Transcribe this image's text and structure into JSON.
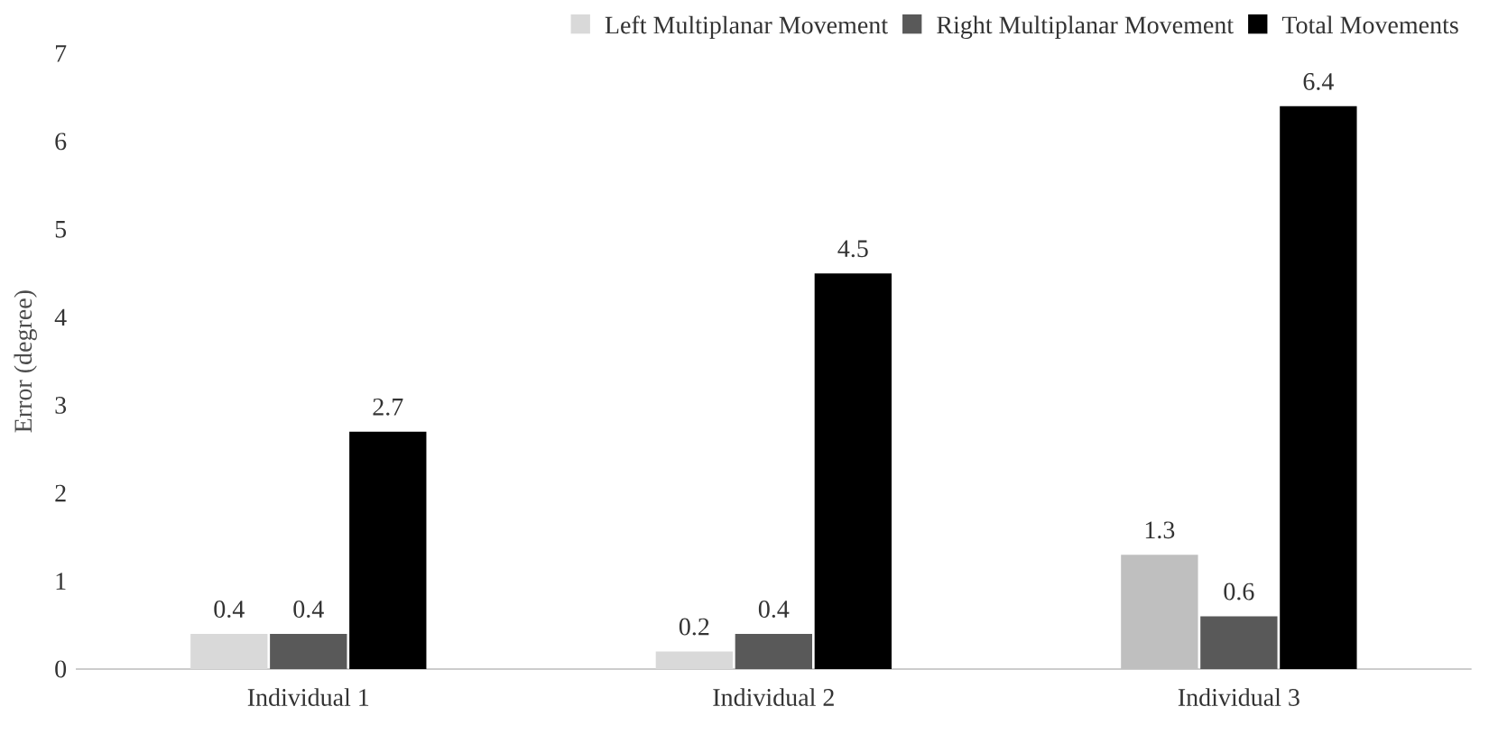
{
  "chart_data": {
    "type": "bar",
    "ylabel": "Error (degree)",
    "categories": [
      "Individual 1",
      "Individual 2",
      "Individual 3"
    ],
    "series": [
      {
        "name": "Left Multiplanar Movement",
        "colors": [
          "#d9d9d9",
          "#d9d9d9",
          "#bfbfbf"
        ],
        "values": [
          0.4,
          0.2,
          1.3
        ]
      },
      {
        "name": "Right Multiplanar Movement",
        "color": "#595959",
        "values": [
          0.4,
          0.4,
          0.6
        ]
      },
      {
        "name": "Total Movements",
        "color": "#000000",
        "values": [
          2.7,
          4.5,
          6.4
        ]
      }
    ],
    "ylim": [
      0,
      7
    ],
    "yticks": [
      0,
      1,
      2,
      3,
      4,
      5,
      6,
      7
    ],
    "data_labels": true,
    "legend": "top right"
  }
}
